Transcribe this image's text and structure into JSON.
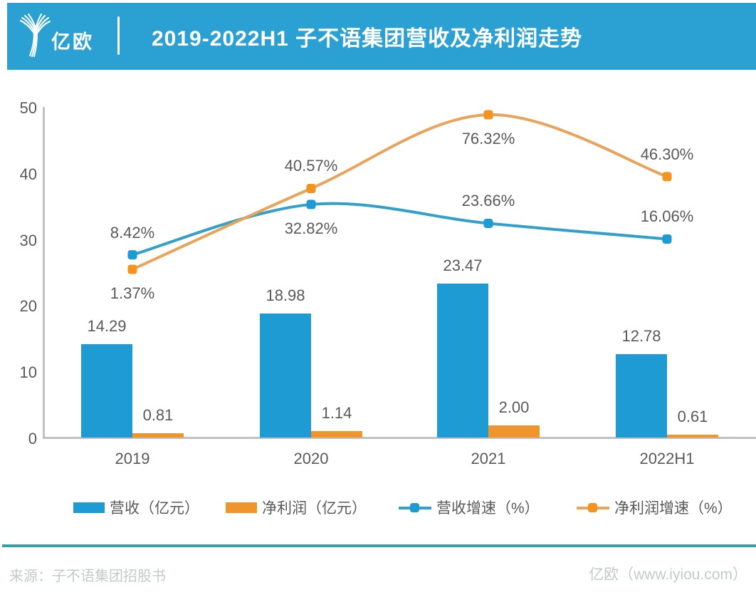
{
  "header": {
    "brand_text": "亿欧",
    "title": "2019-2022H1 子不语集团营收及净利润走势",
    "banner_color": "#2BA1D3"
  },
  "colors": {
    "bar_blue": "#1E9BD2",
    "bar_orange": "#F0952D",
    "line_blue": "#33A0C9",
    "line_orange": "#E9A45C",
    "marker_blue": "#1E9BD2",
    "marker_orange": "#F2941F",
    "axis": "#C1C1C1",
    "label_text": "#595959",
    "footer_text": "#C2CBCA",
    "divider_teal": "#32A0A2"
  },
  "chart_data": {
    "type": "combo bar+line",
    "categories": [
      "2019",
      "2020",
      "2021",
      "2022H1"
    ],
    "bar_series": [
      {
        "name": "营收（亿元）",
        "color": "blue",
        "values": [
          14.29,
          18.98,
          23.47,
          12.78
        ],
        "labels": [
          "14.29",
          "18.98",
          "23.47",
          "12.78"
        ]
      },
      {
        "name": "净利润（亿元）",
        "color": "orange",
        "values": [
          0.81,
          1.14,
          2.0,
          0.61
        ],
        "labels": [
          "0.81",
          "1.14",
          "2.00",
          "0.61"
        ]
      }
    ],
    "line_series": [
      {
        "name": "营收增速（%）",
        "color": "blue",
        "values_pct": [
          8.42,
          32.82,
          23.66,
          16.06
        ],
        "labels": [
          "8.42%",
          "32.82%",
          "23.66%",
          "16.06%"
        ],
        "label_side": [
          "above",
          "below",
          "above",
          "above"
        ]
      },
      {
        "name": "净利润增速（%）",
        "color": "orange",
        "values_pct": [
          1.37,
          40.57,
          76.32,
          46.3
        ],
        "labels": [
          "1.37%",
          "40.57%",
          "76.32%",
          "46.30%"
        ],
        "label_side": [
          "below",
          "above",
          "below",
          "above"
        ]
      }
    ],
    "y_axis": {
      "min": 0,
      "max": 50,
      "ticks": [
        0,
        10,
        20,
        30,
        40,
        50
      ]
    },
    "secondary_axis_mapping": {
      "primary_units_at_0pct": 25.22,
      "primary_units_per_pct": 0.312
    },
    "legend_position": "bottom",
    "grid": false
  },
  "footer": {
    "source": "来源：子不语集团招股书",
    "credit": "亿欧（www.iyiou.com）"
  }
}
